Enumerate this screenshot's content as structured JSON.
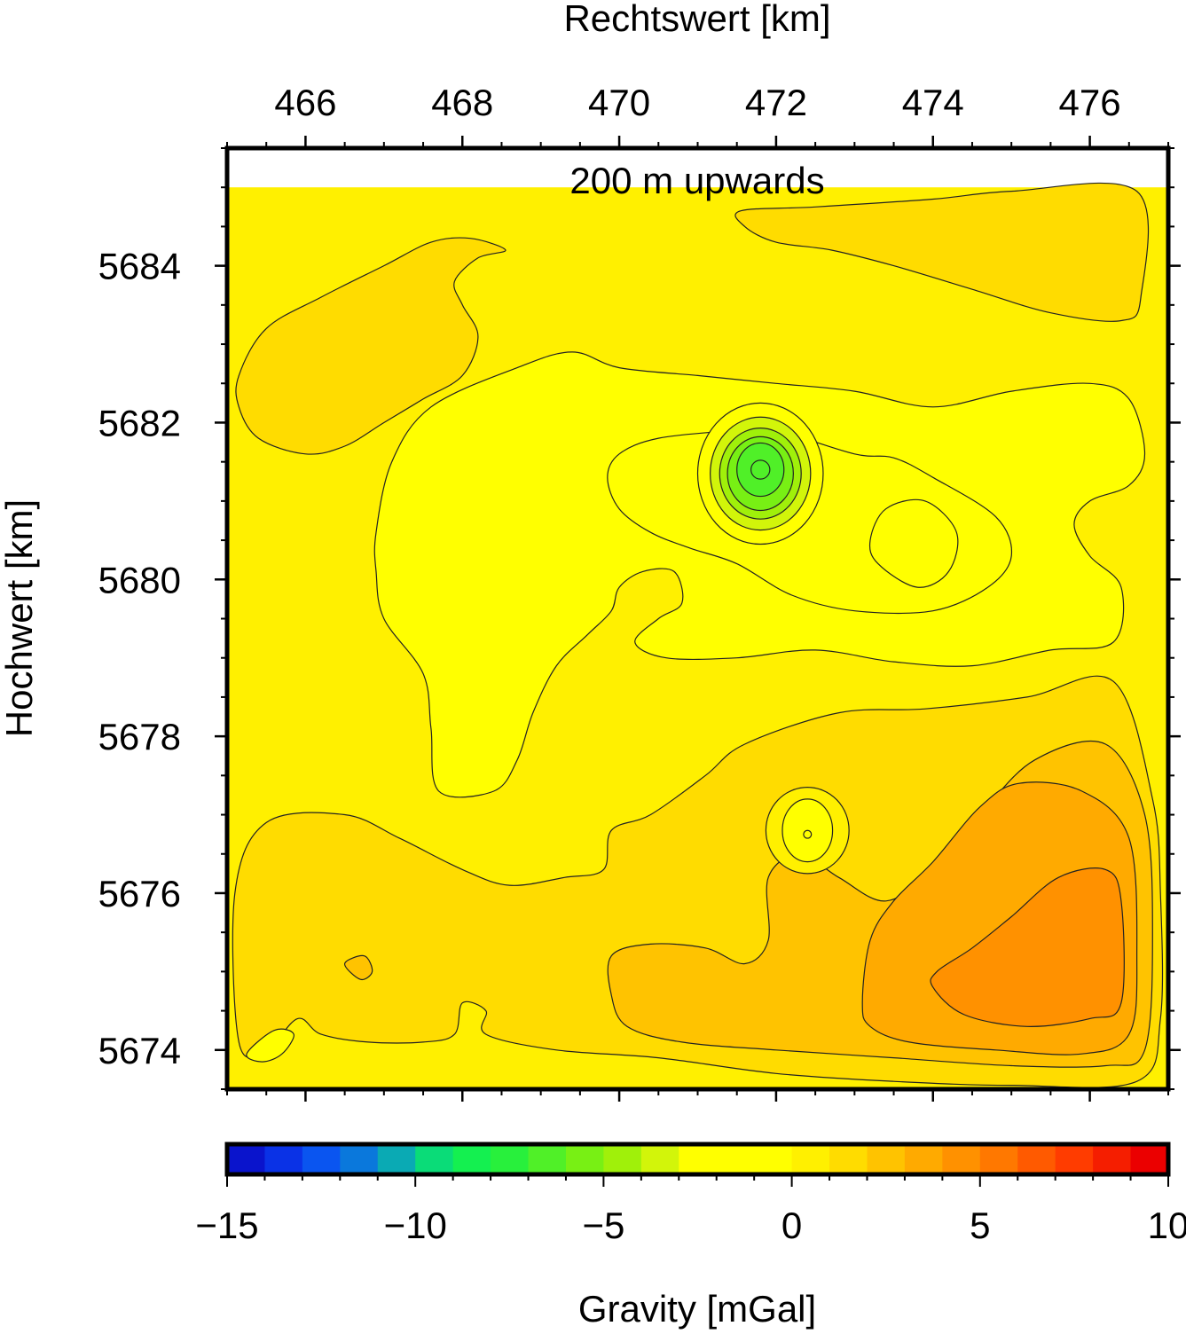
{
  "chart_data": {
    "type": "heatmap",
    "title": "200 m upwards",
    "xlabel": "Rechtswert [km]",
    "ylabel": "Hochwert [km]",
    "xlim": [
      465,
      477
    ],
    "ylim": [
      5673.5,
      5685.5
    ],
    "x_ticks": [
      466,
      468,
      470,
      472,
      474,
      476
    ],
    "y_ticks": [
      5674,
      5676,
      5678,
      5680,
      5682,
      5684
    ],
    "axis_positions": {
      "x": "top",
      "y": "left"
    },
    "colorbar": {
      "label": "Gravity [mGal]",
      "range": [
        -15,
        10
      ],
      "step": 1,
      "ticks": [
        -15,
        -10,
        -5,
        0,
        5,
        10
      ],
      "tick_labels": [
        "−15",
        "−10",
        "−5",
        "0",
        "5",
        "10"
      ],
      "colors": [
        "#0a14cc",
        "#0a32e6",
        "#0a55f0",
        "#0a78dc",
        "#0aaab4",
        "#0adc78",
        "#14f050",
        "#28f03c",
        "#50f028",
        "#78f014",
        "#a0f00a",
        "#d2f50a",
        "#ffff00",
        "#ffff00",
        "#ffff00",
        "#fff000",
        "#ffdc00",
        "#ffc300",
        "#ffaa00",
        "#ff9100",
        "#ff7800",
        "#ff5a00",
        "#ff3c00",
        "#f51e00",
        "#eb0000",
        "#d20000",
        "#b40000"
      ]
    },
    "fields": [
      {
        "x": [
          465.0,
          477.0
        ],
        "y": [
          5673.5,
          5685.0
        ],
        "value": 0.5,
        "role": "background"
      },
      {
        "value": 1.5,
        "polygon": [
          [
            465.15,
            5682.6
          ],
          [
            465.5,
            5683.2
          ],
          [
            466.2,
            5683.6
          ],
          [
            467.0,
            5684.0
          ],
          [
            467.6,
            5684.3
          ],
          [
            468.1,
            5684.35
          ],
          [
            468.55,
            5684.2
          ],
          [
            468.2,
            5684.1
          ],
          [
            467.9,
            5683.8
          ],
          [
            468.0,
            5683.5
          ],
          [
            468.2,
            5683.1
          ],
          [
            468.0,
            5682.6
          ],
          [
            467.5,
            5682.3
          ],
          [
            467.0,
            5682.0
          ],
          [
            466.5,
            5681.7
          ],
          [
            466.0,
            5681.6
          ],
          [
            465.4,
            5681.8
          ],
          [
            465.15,
            5682.2
          ]
        ]
      },
      {
        "value": 1.5,
        "polygon": [
          [
            471.55,
            5684.7
          ],
          [
            472.5,
            5684.75
          ],
          [
            474.0,
            5684.85
          ],
          [
            475.0,
            5684.95
          ],
          [
            476.6,
            5684.95
          ],
          [
            476.65,
            5683.6
          ],
          [
            476.4,
            5683.3
          ],
          [
            475.5,
            5683.4
          ],
          [
            474.5,
            5683.7
          ],
          [
            473.5,
            5684.0
          ],
          [
            472.7,
            5684.2
          ],
          [
            472.0,
            5684.3
          ],
          [
            471.6,
            5684.5
          ]
        ]
      },
      {
        "value": 1.5,
        "polygon": [
          [
            465.1,
            5676.0
          ],
          [
            465.5,
            5676.9
          ],
          [
            466.5,
            5677.0
          ],
          [
            467.2,
            5676.7
          ],
          [
            468.0,
            5676.3
          ],
          [
            468.6,
            5676.1
          ],
          [
            469.3,
            5676.2
          ],
          [
            469.8,
            5676.3
          ],
          [
            469.9,
            5676.8
          ],
          [
            470.4,
            5677.0
          ],
          [
            471.1,
            5677.5
          ],
          [
            471.6,
            5677.9
          ],
          [
            472.8,
            5678.3
          ],
          [
            473.9,
            5678.35
          ],
          [
            475.2,
            5678.5
          ],
          [
            476.3,
            5678.7
          ],
          [
            476.8,
            5677.2
          ],
          [
            476.9,
            5676.0
          ],
          [
            476.9,
            5674.4
          ],
          [
            476.6,
            5673.6
          ],
          [
            475.0,
            5673.55
          ],
          [
            473.5,
            5673.6
          ],
          [
            472.0,
            5673.7
          ],
          [
            470.5,
            5673.9
          ],
          [
            469.2,
            5674.0
          ],
          [
            468.3,
            5674.2
          ],
          [
            468.3,
            5674.5
          ],
          [
            468.0,
            5674.6
          ],
          [
            467.9,
            5674.2
          ],
          [
            467.5,
            5674.1
          ],
          [
            466.8,
            5674.1
          ],
          [
            466.2,
            5674.2
          ],
          [
            465.9,
            5674.4
          ],
          [
            465.5,
            5674.0
          ],
          [
            465.15,
            5674.1
          ]
        ]
      },
      {
        "value": 2.5,
        "polygon": [
          [
            469.9,
            5675.2
          ],
          [
            470.4,
            5675.35
          ],
          [
            471.1,
            5675.3
          ],
          [
            471.6,
            5675.1
          ],
          [
            471.9,
            5675.4
          ],
          [
            471.9,
            5676.2
          ],
          [
            472.3,
            5676.5
          ],
          [
            472.8,
            5676.2
          ],
          [
            473.4,
            5675.9
          ],
          [
            474.0,
            5676.3
          ],
          [
            474.6,
            5677.0
          ],
          [
            475.3,
            5677.7
          ],
          [
            476.2,
            5677.9
          ],
          [
            476.7,
            5677.0
          ],
          [
            476.8,
            5675.5
          ],
          [
            476.7,
            5674.0
          ],
          [
            476.2,
            5673.8
          ],
          [
            475.0,
            5673.8
          ],
          [
            473.5,
            5673.9
          ],
          [
            472.0,
            5674.0
          ],
          [
            470.8,
            5674.1
          ],
          [
            470.1,
            5674.3
          ],
          [
            469.9,
            5674.7
          ]
        ]
      },
      {
        "value": 3.5,
        "polygon": [
          [
            473.1,
            5674.6
          ],
          [
            473.2,
            5675.4
          ],
          [
            473.5,
            5675.9
          ],
          [
            474.0,
            5676.4
          ],
          [
            474.6,
            5677.1
          ],
          [
            475.1,
            5677.4
          ],
          [
            475.9,
            5677.3
          ],
          [
            476.5,
            5676.7
          ],
          [
            476.6,
            5675.2
          ],
          [
            476.5,
            5674.2
          ],
          [
            475.9,
            5673.95
          ],
          [
            474.8,
            5674.0
          ],
          [
            473.7,
            5674.1
          ],
          [
            473.2,
            5674.3
          ]
        ]
      },
      {
        "value": 4.5,
        "polygon": [
          [
            474.0,
            5674.8
          ],
          [
            474.4,
            5674.45
          ],
          [
            475.2,
            5674.3
          ],
          [
            476.0,
            5674.4
          ],
          [
            476.4,
            5674.6
          ],
          [
            476.4,
            5675.9
          ],
          [
            476.2,
            5676.3
          ],
          [
            475.6,
            5676.2
          ],
          [
            475.0,
            5675.7
          ],
          [
            474.5,
            5675.3
          ],
          [
            474.05,
            5675.0
          ]
        ]
      },
      {
        "value": -0.5,
        "polygon": [
          [
            467.1,
            5681.5
          ],
          [
            467.6,
            5682.2
          ],
          [
            468.7,
            5682.7
          ],
          [
            469.4,
            5682.9
          ],
          [
            470.0,
            5682.7
          ],
          [
            471.0,
            5682.6
          ],
          [
            472.0,
            5682.5
          ],
          [
            473.0,
            5682.4
          ],
          [
            474.0,
            5682.2
          ],
          [
            475.0,
            5682.4
          ],
          [
            476.0,
            5682.5
          ],
          [
            476.5,
            5682.3
          ],
          [
            476.7,
            5681.6
          ],
          [
            476.5,
            5681.2
          ],
          [
            476.0,
            5681.0
          ],
          [
            475.8,
            5680.7
          ],
          [
            476.0,
            5680.3
          ],
          [
            476.4,
            5679.9
          ],
          [
            476.3,
            5679.2
          ],
          [
            475.5,
            5679.1
          ],
          [
            474.5,
            5678.9
          ],
          [
            473.5,
            5678.95
          ],
          [
            472.5,
            5679.1
          ],
          [
            471.5,
            5679.0
          ],
          [
            470.6,
            5679.0
          ],
          [
            470.2,
            5679.2
          ],
          [
            470.5,
            5679.5
          ],
          [
            470.8,
            5679.7
          ],
          [
            470.7,
            5680.1
          ],
          [
            470.3,
            5680.1
          ],
          [
            470.0,
            5679.9
          ],
          [
            469.9,
            5679.6
          ],
          [
            469.6,
            5679.3
          ],
          [
            469.2,
            5678.9
          ],
          [
            468.9,
            5678.3
          ],
          [
            468.7,
            5677.7
          ],
          [
            468.4,
            5677.3
          ],
          [
            467.7,
            5677.3
          ],
          [
            467.6,
            5678.1
          ],
          [
            467.5,
            5678.8
          ],
          [
            467.0,
            5679.5
          ],
          [
            466.9,
            5680.1
          ],
          [
            466.9,
            5680.6
          ]
        ]
      },
      {
        "value": -1.5,
        "polygon": [
          [
            470.0,
            5681.6
          ],
          [
            470.5,
            5681.8
          ],
          [
            471.5,
            5681.9
          ],
          [
            472.0,
            5681.9
          ],
          [
            473.0,
            5681.6
          ],
          [
            473.5,
            5681.55
          ],
          [
            474.0,
            5681.3
          ],
          [
            474.8,
            5680.8
          ],
          [
            475.0,
            5680.3
          ],
          [
            474.7,
            5679.9
          ],
          [
            474.0,
            5679.6
          ],
          [
            473.0,
            5679.6
          ],
          [
            472.2,
            5679.8
          ],
          [
            471.5,
            5680.2
          ],
          [
            470.9,
            5680.4
          ],
          [
            470.4,
            5680.6
          ],
          [
            470.0,
            5680.9
          ],
          [
            469.85,
            5681.3
          ]
        ]
      },
      {
        "value": -2.5,
        "polygon": [
          [
            473.2,
            5680.5
          ],
          [
            473.4,
            5680.9
          ],
          [
            473.9,
            5681.0
          ],
          [
            474.3,
            5680.6
          ],
          [
            474.2,
            5680.1
          ],
          [
            473.8,
            5679.9
          ],
          [
            473.3,
            5680.2
          ]
        ]
      },
      {
        "value": -1.5,
        "polygon": [
          [
            465.25,
            5673.95
          ],
          [
            465.6,
            5674.25
          ],
          [
            465.85,
            5674.2
          ],
          [
            465.7,
            5673.95
          ],
          [
            465.45,
            5673.85
          ]
        ]
      },
      {
        "value": 2.5,
        "polygon": [
          [
            466.5,
            5675.1
          ],
          [
            466.75,
            5675.2
          ],
          [
            466.85,
            5675.0
          ],
          [
            466.7,
            5674.9
          ]
        ]
      },
      {
        "value": -2.5,
        "center": [
          471.8,
          5681.35
        ],
        "radii": [
          0.8,
          0.9
        ],
        "role": "low"
      },
      {
        "value": -3.5,
        "center": [
          471.8,
          5681.35
        ],
        "radii": [
          0.64,
          0.72
        ],
        "role": "low"
      },
      {
        "value": -4.5,
        "center": [
          471.8,
          5681.35
        ],
        "radii": [
          0.52,
          0.58
        ],
        "role": "low"
      },
      {
        "value": -5.5,
        "center": [
          471.8,
          5681.35
        ],
        "radii": [
          0.42,
          0.47
        ],
        "role": "low"
      },
      {
        "value": -6.5,
        "center": [
          471.8,
          5681.4
        ],
        "radii": [
          0.3,
          0.34
        ],
        "role": "low"
      },
      {
        "value": -7.0,
        "center": [
          471.8,
          5681.4
        ],
        "radii": [
          0.12,
          0.12
        ],
        "role": "low"
      },
      {
        "value": 0.5,
        "center": [
          472.4,
          5676.8
        ],
        "radii": [
          0.53,
          0.55
        ],
        "role": "high"
      },
      {
        "value": -0.5,
        "center": [
          472.4,
          5676.8
        ],
        "radii": [
          0.32,
          0.4
        ],
        "role": "high"
      },
      {
        "value": -1.0,
        "center": [
          472.4,
          5676.75
        ],
        "radii": [
          0.05,
          0.05
        ],
        "role": "high"
      }
    ]
  }
}
